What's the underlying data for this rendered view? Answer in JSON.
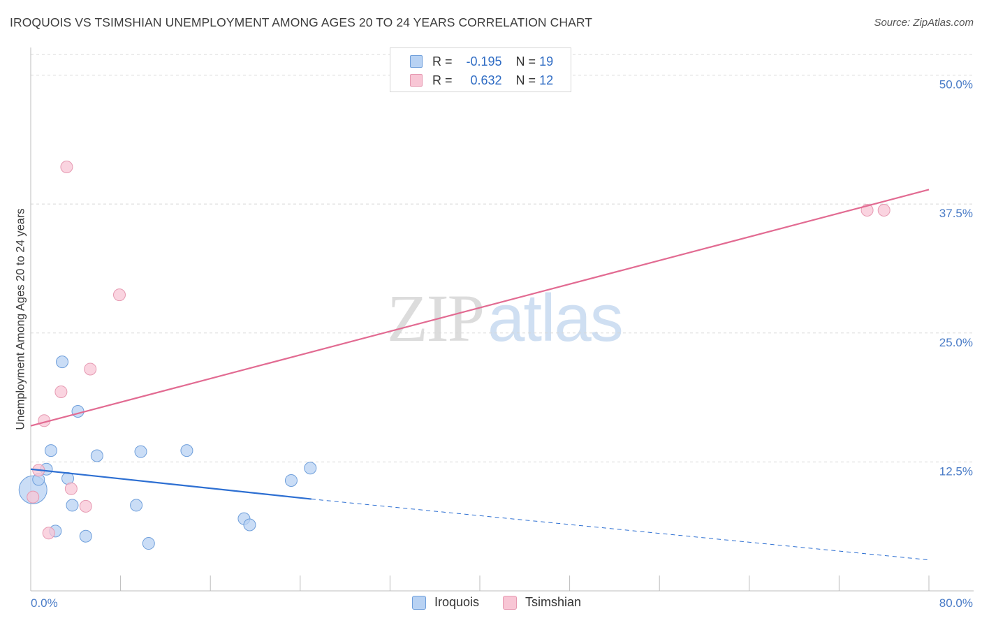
{
  "title": "IROQUOIS VS TSIMSHIAN UNEMPLOYMENT AMONG AGES 20 TO 24 YEARS CORRELATION CHART",
  "source": "Source: ZipAtlas.com",
  "watermark": {
    "zip": "ZIP",
    "atlas": "atlas"
  },
  "legend": {
    "iroquois": {
      "r_label": "R =",
      "r_value": "-0.195",
      "n_label": "N =",
      "n_value": "19"
    },
    "tsimshian": {
      "r_label": "R =",
      "r_value": "0.632",
      "n_label": "N =",
      "n_value": "12"
    }
  },
  "bottom_legend": {
    "iroquois": "Iroquois",
    "tsimshian": "Tsimshian"
  },
  "colors": {
    "iroquois_fill": "#b8d2f3",
    "iroquois_stroke": "#6f9fdb",
    "iroquois_line": "#2d6fd2",
    "tsimshian_fill": "#f8c6d5",
    "tsimshian_stroke": "#e69ab2",
    "tsimshian_line": "#e26b92",
    "grid": "#d8d8d8",
    "axis_label": "#4a7cc7"
  },
  "chart_data": {
    "type": "scatter",
    "title": "IROQUOIS VS TSIMSHIAN UNEMPLOYMENT AMONG AGES 20 TO 24 YEARS CORRELATION CHART",
    "xlabel": "",
    "ylabel": "Unemployment Among Ages 20 to 24 years",
    "xlim": [
      0,
      80
    ],
    "ylim": [
      0,
      52
    ],
    "x_tick_labels": [
      "0.0%",
      "80.0%"
    ],
    "y_ticks": [
      12.5,
      25.0,
      37.5,
      50.0
    ],
    "y_tick_labels": [
      "12.5%",
      "25.0%",
      "37.5%",
      "50.0%"
    ],
    "grid": true,
    "legend_position": "top-center",
    "series": [
      {
        "name": "Iroquois",
        "points": [
          {
            "x": 0.2,
            "y": 9.8,
            "big": true
          },
          {
            "x": 0.7,
            "y": 10.8
          },
          {
            "x": 1.4,
            "y": 11.8
          },
          {
            "x": 1.8,
            "y": 13.6
          },
          {
            "x": 2.2,
            "y": 5.8
          },
          {
            "x": 2.8,
            "y": 22.2
          },
          {
            "x": 3.3,
            "y": 10.9
          },
          {
            "x": 3.7,
            "y": 8.3
          },
          {
            "x": 4.2,
            "y": 17.4
          },
          {
            "x": 4.9,
            "y": 5.3
          },
          {
            "x": 5.9,
            "y": 13.1
          },
          {
            "x": 9.4,
            "y": 8.3
          },
          {
            "x": 9.8,
            "y": 13.5
          },
          {
            "x": 10.5,
            "y": 4.6
          },
          {
            "x": 13.9,
            "y": 13.6
          },
          {
            "x": 19.0,
            "y": 7.0
          },
          {
            "x": 19.5,
            "y": 6.4
          },
          {
            "x": 23.2,
            "y": 10.7
          },
          {
            "x": 24.9,
            "y": 11.9
          }
        ],
        "trend": {
          "x0": 0,
          "y0": 11.8,
          "x1": 25.0,
          "y1": 8.9,
          "dash_x_end": 80,
          "dash_y_end": 3.0
        }
      },
      {
        "name": "Tsimshian",
        "points": [
          {
            "x": 0.2,
            "y": 9.1
          },
          {
            "x": 0.7,
            "y": 11.7
          },
          {
            "x": 1.2,
            "y": 16.5
          },
          {
            "x": 1.6,
            "y": 5.6
          },
          {
            "x": 2.7,
            "y": 19.3
          },
          {
            "x": 3.2,
            "y": 41.1
          },
          {
            "x": 3.6,
            "y": 9.9
          },
          {
            "x": 4.9,
            "y": 8.2
          },
          {
            "x": 5.3,
            "y": 21.5
          },
          {
            "x": 7.9,
            "y": 28.7
          },
          {
            "x": 74.5,
            "y": 36.9
          },
          {
            "x": 76.0,
            "y": 36.9
          }
        ],
        "trend": {
          "x0": 0,
          "y0": 16.0,
          "x1": 80,
          "y1": 38.9
        }
      }
    ]
  }
}
